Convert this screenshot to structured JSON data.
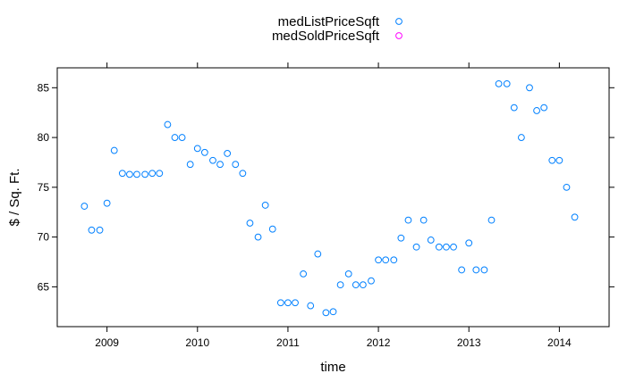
{
  "chart_data": {
    "type": "scatter",
    "title": "",
    "xlabel": "time",
    "ylabel": "$ / Sq. Ft.",
    "xlim": [
      2008.45,
      2014.55
    ],
    "ylim": [
      61,
      87
    ],
    "x_ticks": [
      2009,
      2010,
      2011,
      2012,
      2013,
      2014
    ],
    "x_tick_labels": [
      "2009",
      "2010",
      "2011",
      "2012",
      "2013",
      "2014"
    ],
    "y_ticks": [
      65,
      70,
      75,
      80,
      85
    ],
    "y_tick_labels": [
      "65",
      "70",
      "75",
      "80",
      "85"
    ],
    "legend_position": "top",
    "grid": false,
    "series": [
      {
        "name": "medListPriceSqft",
        "color": "#0080ff",
        "marker": "open-circle",
        "points": [
          [
            2008.75,
            73.1
          ],
          [
            2008.83,
            70.7
          ],
          [
            2008.92,
            70.7
          ],
          [
            2009.0,
            73.4
          ],
          [
            2009.08,
            78.7
          ],
          [
            2009.17,
            76.4
          ],
          [
            2009.25,
            76.3
          ],
          [
            2009.33,
            76.3
          ],
          [
            2009.42,
            76.3
          ],
          [
            2009.5,
            76.4
          ],
          [
            2009.58,
            76.4
          ],
          [
            2009.67,
            81.3
          ],
          [
            2009.75,
            80.0
          ],
          [
            2009.83,
            80.0
          ],
          [
            2009.92,
            77.3
          ],
          [
            2010.0,
            78.9
          ],
          [
            2010.08,
            78.5
          ],
          [
            2010.17,
            77.7
          ],
          [
            2010.25,
            77.3
          ],
          [
            2010.33,
            78.4
          ],
          [
            2010.42,
            77.3
          ],
          [
            2010.5,
            76.4
          ],
          [
            2010.58,
            71.4
          ],
          [
            2010.67,
            70.0
          ],
          [
            2010.75,
            73.2
          ],
          [
            2010.83,
            70.8
          ],
          [
            2010.92,
            63.4
          ],
          [
            2011.0,
            63.4
          ],
          [
            2011.08,
            63.4
          ],
          [
            2011.17,
            66.3
          ],
          [
            2011.25,
            63.1
          ],
          [
            2011.33,
            68.3
          ],
          [
            2011.42,
            62.4
          ],
          [
            2011.5,
            62.5
          ],
          [
            2011.58,
            65.2
          ],
          [
            2011.67,
            66.3
          ],
          [
            2011.75,
            65.2
          ],
          [
            2011.83,
            65.2
          ],
          [
            2011.92,
            65.6
          ],
          [
            2012.0,
            67.7
          ],
          [
            2012.08,
            67.7
          ],
          [
            2012.17,
            67.7
          ],
          [
            2012.25,
            69.9
          ],
          [
            2012.33,
            71.7
          ],
          [
            2012.42,
            69.0
          ],
          [
            2012.5,
            71.7
          ],
          [
            2012.58,
            69.7
          ],
          [
            2012.67,
            69.0
          ],
          [
            2012.75,
            69.0
          ],
          [
            2012.83,
            69.0
          ],
          [
            2012.92,
            66.7
          ],
          [
            2013.0,
            69.4
          ],
          [
            2013.08,
            66.7
          ],
          [
            2013.17,
            66.7
          ],
          [
            2013.25,
            71.7
          ],
          [
            2013.33,
            85.4
          ],
          [
            2013.42,
            85.4
          ],
          [
            2013.5,
            83.0
          ],
          [
            2013.58,
            80.0
          ],
          [
            2013.67,
            85.0
          ],
          [
            2013.75,
            82.7
          ],
          [
            2013.83,
            83.0
          ],
          [
            2013.92,
            77.7
          ],
          [
            2014.0,
            77.7
          ],
          [
            2014.08,
            75.0
          ],
          [
            2014.17,
            72.0
          ]
        ]
      },
      {
        "name": "medSoldPriceSqft",
        "color": "#ff00ff",
        "marker": "open-circle",
        "points": []
      }
    ]
  }
}
